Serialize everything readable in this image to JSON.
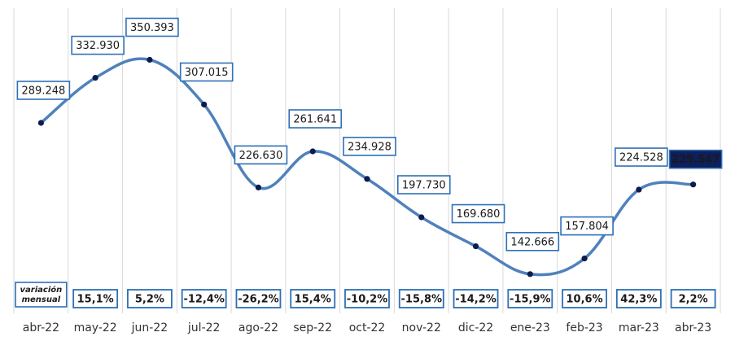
{
  "chart_data": {
    "type": "line",
    "categories": [
      "abr-22",
      "may-22",
      "jun-22",
      "jul-22",
      "ago-22",
      "sep-22",
      "oct-22",
      "nov-22",
      "dic-22",
      "ene-23",
      "feb-23",
      "mar-23",
      "abr-23"
    ],
    "values": [
      289248,
      332930,
      350393,
      307015,
      226630,
      261641,
      234928,
      197730,
      169680,
      142666,
      157804,
      224528,
      229547
    ],
    "value_labels": [
      "289.248",
      "332.930",
      "350.393",
      "307.015",
      "226.630",
      "261.641",
      "234.928",
      "197.730",
      "169.680",
      "142.666",
      "157.804",
      "224.528",
      "229.547"
    ],
    "variation_label_line1": "variación",
    "variation_label_line2": "mensual",
    "variations": [
      "15,1%",
      "5,2%",
      "-12,4%",
      "-26,2%",
      "15,4%",
      "-10,2%",
      "-15,8%",
      "-14,2%",
      "-15,9%",
      "10,6%",
      "42,3%",
      "2,2%"
    ],
    "ylim": [
      100000,
      400000
    ],
    "grid": "vertical",
    "colors": {
      "line": "#4f81bd",
      "marker": "#0d1b4d",
      "box_border": "#2e6fb7",
      "highlight_fill": "#0d1f5c",
      "highlight_text": "#ffffff",
      "grid": "#d9d9d9"
    }
  }
}
